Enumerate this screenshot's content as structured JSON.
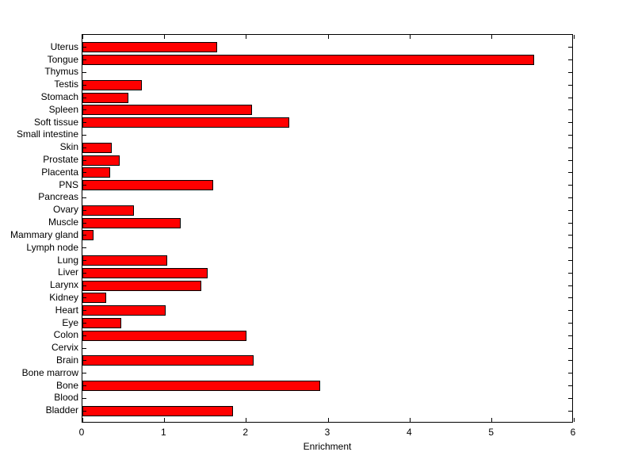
{
  "figure": {
    "background_color": "#ffffff",
    "axis_color": "#000000",
    "text_color": "#000000"
  },
  "chart_data": {
    "type": "bar",
    "orientation": "horizontal",
    "title": "",
    "xlabel": "Enrichment",
    "ylabel": "",
    "xlim": [
      0,
      6
    ],
    "xticks": [
      0,
      1,
      2,
      3,
      4,
      5,
      6
    ],
    "grid": false,
    "legend": null,
    "bar_color": "#ff0000",
    "bar_edge_color": "#000000",
    "categories": [
      "Uterus",
      "Tongue",
      "Thymus",
      "Testis",
      "Stomach",
      "Spleen",
      "Soft tissue",
      "Small intestine",
      "Skin",
      "Prostate",
      "Placenta",
      "PNS",
      "Pancreas",
      "Ovary",
      "Muscle",
      "Mammary gland",
      "Lymph node",
      "Lung",
      "Liver",
      "Larynx",
      "Kidney",
      "Heart",
      "Eye",
      "Colon",
      "Cervix",
      "Brain",
      "Bone marrow",
      "Bone",
      "Blood",
      "Bladder"
    ],
    "values": [
      1.65,
      5.52,
      0,
      0.73,
      0.56,
      2.07,
      2.53,
      0,
      0.36,
      0.45,
      0.34,
      1.6,
      0,
      0.63,
      1.2,
      0.14,
      0,
      1.04,
      1.53,
      1.45,
      0.29,
      1.02,
      0.47,
      2.0,
      0,
      2.09,
      0,
      2.9,
      0,
      1.84
    ]
  }
}
